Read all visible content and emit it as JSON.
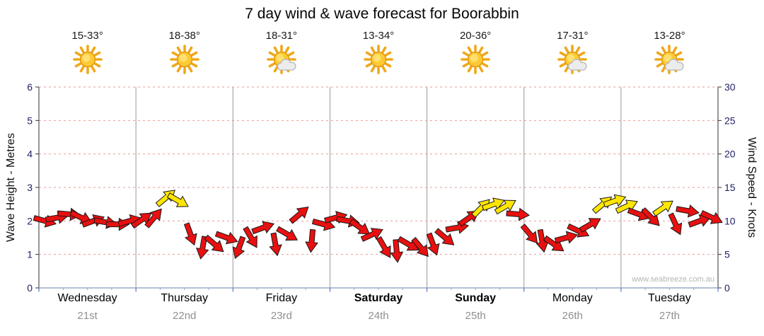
{
  "title": "7 day wind & wave forecast for Boorabbin",
  "watermark": "www.seabreeze.com.au",
  "days": [
    {
      "name": "Wednesday",
      "date": "21st",
      "temp": "15-33°",
      "icon": "sunny",
      "bold": false
    },
    {
      "name": "Thursday",
      "date": "22nd",
      "temp": "18-38°",
      "icon": "sunny",
      "bold": false
    },
    {
      "name": "Friday",
      "date": "23rd",
      "temp": "18-31°",
      "icon": "partly-cloudy",
      "bold": false
    },
    {
      "name": "Saturday",
      "date": "24th",
      "temp": "13-34°",
      "icon": "sunny",
      "bold": true
    },
    {
      "name": "Sunday",
      "date": "25th",
      "temp": "20-36°",
      "icon": "sunny",
      "bold": true
    },
    {
      "name": "Monday",
      "date": "26th",
      "temp": "17-31°",
      "icon": "partly-cloudy",
      "bold": false
    },
    {
      "name": "Tuesday",
      "date": "27th",
      "temp": "13-28°",
      "icon": "partly-cloudy",
      "bold": false
    }
  ],
  "axes": {
    "left_label": "Wave Height - Metres",
    "left_ticks": [
      0,
      1,
      2,
      3,
      4,
      5,
      6
    ],
    "right_label": "Wind Speed - Knots",
    "right_ticks": [
      0,
      5,
      10,
      15,
      20,
      25,
      30
    ]
  },
  "colors": {
    "arrow_red": "#e81010",
    "arrow_yellow": "#ffe600",
    "grid_red": "#ee9999",
    "day_line": "#999999",
    "axis_line": "#555555",
    "bottom_axis": "#8899bb",
    "tick_text": "#222266",
    "blue_tick": "#3a5fcd"
  },
  "chart_data": {
    "type": "wind-arrows",
    "title": "7 day wind & wave forecast for Boorabbin",
    "x_days": [
      "Wednesday 21st",
      "Thursday 22nd",
      "Friday 23rd",
      "Saturday 24th",
      "Sunday 25th",
      "Monday 26th",
      "Tuesday 27th"
    ],
    "points_per_day": 8,
    "knots_range": [
      0,
      30
    ],
    "wave_range": [
      0,
      6
    ],
    "yellow_threshold_knots": 12,
    "wind_knots": [
      10,
      10.5,
      11,
      10.5,
      10,
      9.8,
      9.5,
      10,
      10.2,
      10.5,
      13.5,
      13,
      8,
      6,
      6.5,
      7.5,
      6,
      7.5,
      9,
      6.5,
      8,
      11,
      7,
      9.5,
      10.5,
      10,
      9,
      8,
      6,
      5.5,
      6.5,
      6,
      6.5,
      7.5,
      9,
      10.5,
      12,
      12.5,
      12.2,
      11,
      8,
      7,
      6.5,
      7.5,
      8.5,
      9.5,
      12.5,
      13,
      12.2,
      11,
      10.5,
      12,
      9.5,
      11.5,
      10,
      10.5
    ],
    "arrow_angles_deg": [
      15,
      -10,
      5,
      25,
      -20,
      10,
      0,
      -15,
      -35,
      -50,
      -40,
      30,
      70,
      100,
      40,
      20,
      110,
      60,
      -20,
      80,
      30,
      -40,
      95,
      15,
      -15,
      10,
      35,
      -25,
      60,
      85,
      30,
      50,
      70,
      40,
      -10,
      -35,
      -45,
      -20,
      -30,
      5,
      50,
      80,
      35,
      -15,
      25,
      -30,
      -40,
      -20,
      -25,
      20,
      45,
      -35,
      65,
      10,
      -20,
      25
    ]
  }
}
